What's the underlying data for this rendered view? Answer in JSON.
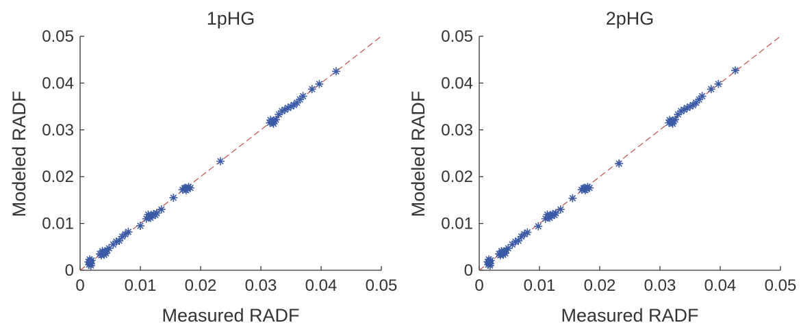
{
  "colors": {
    "marker": "#3a5aa6",
    "reference_line": "#c0504d",
    "axis": "#333333"
  },
  "chart_data": [
    {
      "type": "scatter",
      "title": "1pHG",
      "xlabel": "Measured RADF",
      "ylabel": "Modeled RADF",
      "xlim": [
        0,
        0.05
      ],
      "ylim": [
        0,
        0.05
      ],
      "xticks": [
        "0",
        "0.01",
        "0.02",
        "0.03",
        "0.04",
        "0.05"
      ],
      "yticks": [
        "0",
        "0.01",
        "0.02",
        "0.03",
        "0.04",
        "0.05"
      ],
      "marker": "asterisk",
      "reference_line": "y = x (dashed)",
      "grid": false,
      "series": [
        {
          "points": [
            [
              0.0015,
              0.0012
            ],
            [
              0.0016,
              0.0016
            ],
            [
              0.0017,
              0.0019
            ],
            [
              0.0018,
              0.0014
            ],
            [
              0.0014,
              0.0018
            ],
            [
              0.0019,
              0.0021
            ],
            [
              0.0016,
              0.0023
            ],
            [
              0.0018,
              0.001
            ],
            [
              0.0035,
              0.0032
            ],
            [
              0.0038,
              0.0036
            ],
            [
              0.004,
              0.0038
            ],
            [
              0.0042,
              0.004
            ],
            [
              0.0045,
              0.0043
            ],
            [
              0.0037,
              0.0041
            ],
            [
              0.0043,
              0.0036
            ],
            [
              0.0048,
              0.0047
            ],
            [
              0.0033,
              0.0035
            ],
            [
              0.004,
              0.0033
            ],
            [
              0.0055,
              0.0055
            ],
            [
              0.006,
              0.0061
            ],
            [
              0.0065,
              0.0063
            ],
            [
              0.007,
              0.0072
            ],
            [
              0.0075,
              0.0077
            ],
            [
              0.008,
              0.0082
            ],
            [
              0.01,
              0.0095
            ],
            [
              0.011,
              0.011
            ],
            [
              0.0115,
              0.0114
            ],
            [
              0.0118,
              0.0118
            ],
            [
              0.012,
              0.0116
            ],
            [
              0.0122,
              0.012
            ],
            [
              0.0125,
              0.0118
            ],
            [
              0.0113,
              0.0119
            ],
            [
              0.0117,
              0.0112
            ],
            [
              0.0127,
              0.0122
            ],
            [
              0.0135,
              0.013
            ],
            [
              0.0155,
              0.0155
            ],
            [
              0.017,
              0.0172
            ],
            [
              0.0173,
              0.0175
            ],
            [
              0.0175,
              0.0176
            ],
            [
              0.0178,
              0.0174
            ],
            [
              0.018,
              0.0178
            ],
            [
              0.0176,
              0.0171
            ],
            [
              0.0183,
              0.0176
            ],
            [
              0.0233,
              0.0233
            ],
            [
              0.0315,
              0.0315
            ],
            [
              0.0318,
              0.0318
            ],
            [
              0.032,
              0.0316
            ],
            [
              0.0322,
              0.032
            ],
            [
              0.0325,
              0.0322
            ],
            [
              0.0316,
              0.0321
            ],
            [
              0.0321,
              0.0313
            ],
            [
              0.033,
              0.0333
            ],
            [
              0.0335,
              0.034
            ],
            [
              0.034,
              0.0343
            ],
            [
              0.0345,
              0.0347
            ],
            [
              0.035,
              0.035
            ],
            [
              0.0355,
              0.0353
            ],
            [
              0.036,
              0.0358
            ],
            [
              0.0365,
              0.0365
            ],
            [
              0.037,
              0.0372
            ],
            [
              0.0385,
              0.0387
            ],
            [
              0.0397,
              0.0398
            ],
            [
              0.0425,
              0.0425
            ]
          ]
        }
      ]
    },
    {
      "type": "scatter",
      "title": "2pHG",
      "xlabel": "Measured RADF",
      "ylabel": "Modeled RADF",
      "xlim": [
        0,
        0.05
      ],
      "ylim": [
        0,
        0.05
      ],
      "xticks": [
        "0",
        "0.01",
        "0.02",
        "0.03",
        "0.04",
        "0.05"
      ],
      "yticks": [
        "0",
        "0.01",
        "0.02",
        "0.03",
        "0.04",
        "0.05"
      ],
      "marker": "asterisk",
      "reference_line": "y = x (dashed)",
      "grid": false,
      "series": [
        {
          "points": [
            [
              0.0015,
              0.0012
            ],
            [
              0.0016,
              0.0016
            ],
            [
              0.0017,
              0.0019
            ],
            [
              0.0018,
              0.0014
            ],
            [
              0.0014,
              0.0018
            ],
            [
              0.0019,
              0.0021
            ],
            [
              0.0016,
              0.0023
            ],
            [
              0.0018,
              0.001
            ],
            [
              0.0035,
              0.0032
            ],
            [
              0.0038,
              0.0036
            ],
            [
              0.004,
              0.0038
            ],
            [
              0.0042,
              0.004
            ],
            [
              0.0045,
              0.0043
            ],
            [
              0.0037,
              0.0041
            ],
            [
              0.0043,
              0.0036
            ],
            [
              0.0048,
              0.0047
            ],
            [
              0.0033,
              0.0035
            ],
            [
              0.004,
              0.0033
            ],
            [
              0.0055,
              0.0055
            ],
            [
              0.006,
              0.0061
            ],
            [
              0.0065,
              0.0063
            ],
            [
              0.007,
              0.0072
            ],
            [
              0.0075,
              0.0077
            ],
            [
              0.008,
              0.0081
            ],
            [
              0.0098,
              0.0094
            ],
            [
              0.011,
              0.011
            ],
            [
              0.0115,
              0.0114
            ],
            [
              0.0118,
              0.0118
            ],
            [
              0.012,
              0.0116
            ],
            [
              0.0122,
              0.012
            ],
            [
              0.0125,
              0.0118
            ],
            [
              0.0113,
              0.0119
            ],
            [
              0.0117,
              0.0112
            ],
            [
              0.0127,
              0.0122
            ],
            [
              0.0135,
              0.013
            ],
            [
              0.0155,
              0.0154
            ],
            [
              0.017,
              0.0172
            ],
            [
              0.0173,
              0.0175
            ],
            [
              0.0175,
              0.0176
            ],
            [
              0.0178,
              0.0174
            ],
            [
              0.018,
              0.0178
            ],
            [
              0.0176,
              0.0171
            ],
            [
              0.0183,
              0.0176
            ],
            [
              0.0232,
              0.0228
            ],
            [
              0.0315,
              0.0315
            ],
            [
              0.0318,
              0.0318
            ],
            [
              0.032,
              0.0316
            ],
            [
              0.0322,
              0.032
            ],
            [
              0.0325,
              0.0322
            ],
            [
              0.0316,
              0.0321
            ],
            [
              0.0321,
              0.0313
            ],
            [
              0.033,
              0.0333
            ],
            [
              0.0335,
              0.034
            ],
            [
              0.034,
              0.0343
            ],
            [
              0.0345,
              0.0347
            ],
            [
              0.035,
              0.035
            ],
            [
              0.0355,
              0.0353
            ],
            [
              0.036,
              0.0358
            ],
            [
              0.0365,
              0.0365
            ],
            [
              0.037,
              0.0372
            ],
            [
              0.0385,
              0.0387
            ],
            [
              0.0397,
              0.0398
            ],
            [
              0.0425,
              0.0427
            ]
          ]
        }
      ]
    }
  ]
}
